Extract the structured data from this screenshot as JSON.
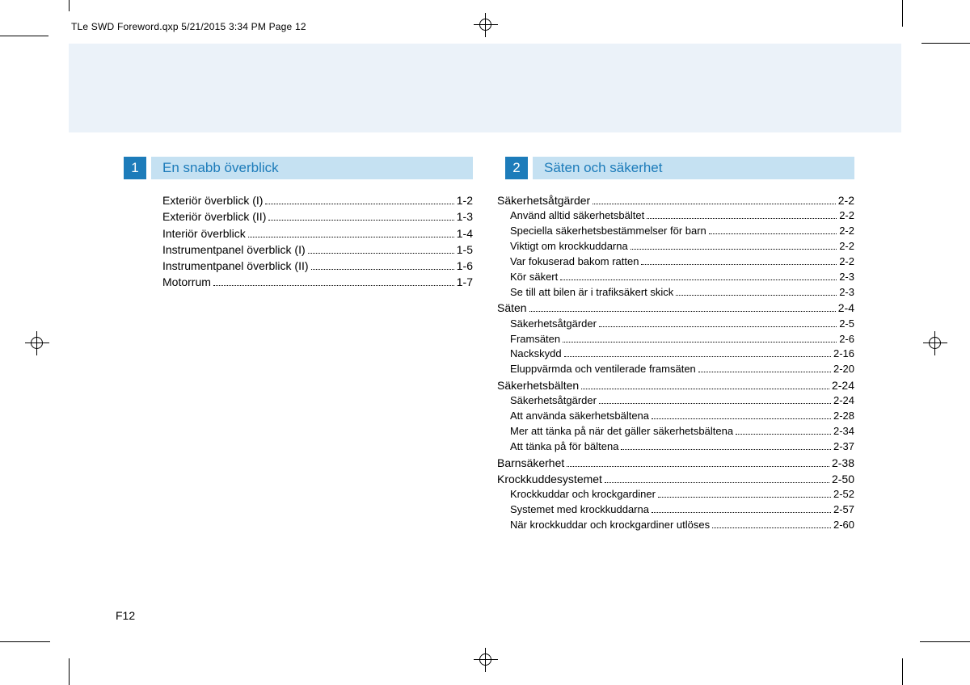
{
  "print_meta": "TLe SWD Foreword.qxp  5/21/2015  3:34 PM  Page 12",
  "page_number": "F12",
  "sections": [
    {
      "number": "1",
      "title": "En snabb överblick",
      "entries": [
        {
          "level": 0,
          "label": "Exteriör överblick (I)",
          "page": "1-2"
        },
        {
          "level": 0,
          "label": "Exteriör överblick (II)",
          "page": "1-3"
        },
        {
          "level": 0,
          "label": "Interiör överblick",
          "page": "1-4"
        },
        {
          "level": 0,
          "label": "Instrumentpanel överblick (I)",
          "page": "1-5"
        },
        {
          "level": 0,
          "label": "Instrumentpanel överblick (II)",
          "page": "1-6"
        },
        {
          "level": 0,
          "label": "Motorrum",
          "page": "1-7"
        }
      ]
    },
    {
      "number": "2",
      "title": "Säten och säkerhet",
      "entries": [
        {
          "level": 0,
          "label": "Säkerhetsåtgärder",
          "page": "2-2"
        },
        {
          "level": 1,
          "label": "Använd alltid säkerhetsbältet",
          "page": "2-2"
        },
        {
          "level": 1,
          "label": "Speciella säkerhetsbestämmelser för barn",
          "page": "2-2"
        },
        {
          "level": 1,
          "label": "Viktigt om krockkuddarna",
          "page": "2-2"
        },
        {
          "level": 1,
          "label": "Var fokuserad bakom ratten",
          "page": "2-2"
        },
        {
          "level": 1,
          "label": "Kör säkert",
          "page": "2-3"
        },
        {
          "level": 1,
          "label": "Se till att bilen är i trafiksäkert skick",
          "page": "2-3"
        },
        {
          "level": 0,
          "label": "Säten",
          "page": "2-4"
        },
        {
          "level": 1,
          "label": "Säkerhetsåtgärder",
          "page": "2-5"
        },
        {
          "level": 1,
          "label": "Framsäten",
          "page": "2-6"
        },
        {
          "level": 1,
          "label": "Nackskydd",
          "page": "2-16"
        },
        {
          "level": 1,
          "label": "Eluppvärmda och ventilerade framsäten",
          "page": "2-20"
        },
        {
          "level": 0,
          "label": "Säkerhetsbälten",
          "page": "2-24"
        },
        {
          "level": 1,
          "label": "Säkerhetsåtgärder",
          "page": "2-24"
        },
        {
          "level": 1,
          "label": "Att använda säkerhetsbältena",
          "page": "2-28"
        },
        {
          "level": 1,
          "label": "Mer att tänka på när det gäller säkerhetsbältena",
          "page": "2-34",
          "wrap": true
        },
        {
          "level": 1,
          "label": "Att tänka på för bältena",
          "page": "2-37"
        },
        {
          "level": 0,
          "label": "Barnsäkerhet",
          "page": "2-38"
        },
        {
          "level": 0,
          "label": "Krockkuddesystemet",
          "page": "2-50"
        },
        {
          "level": 1,
          "label": "Krockkuddar och krockgardiner",
          "page": "2-52"
        },
        {
          "level": 1,
          "label": "Systemet med krockkuddarna",
          "page": "2-57"
        },
        {
          "level": 1,
          "label": "När krockkuddar och krockgardiner utlöses",
          "page": "2-60"
        }
      ]
    }
  ]
}
